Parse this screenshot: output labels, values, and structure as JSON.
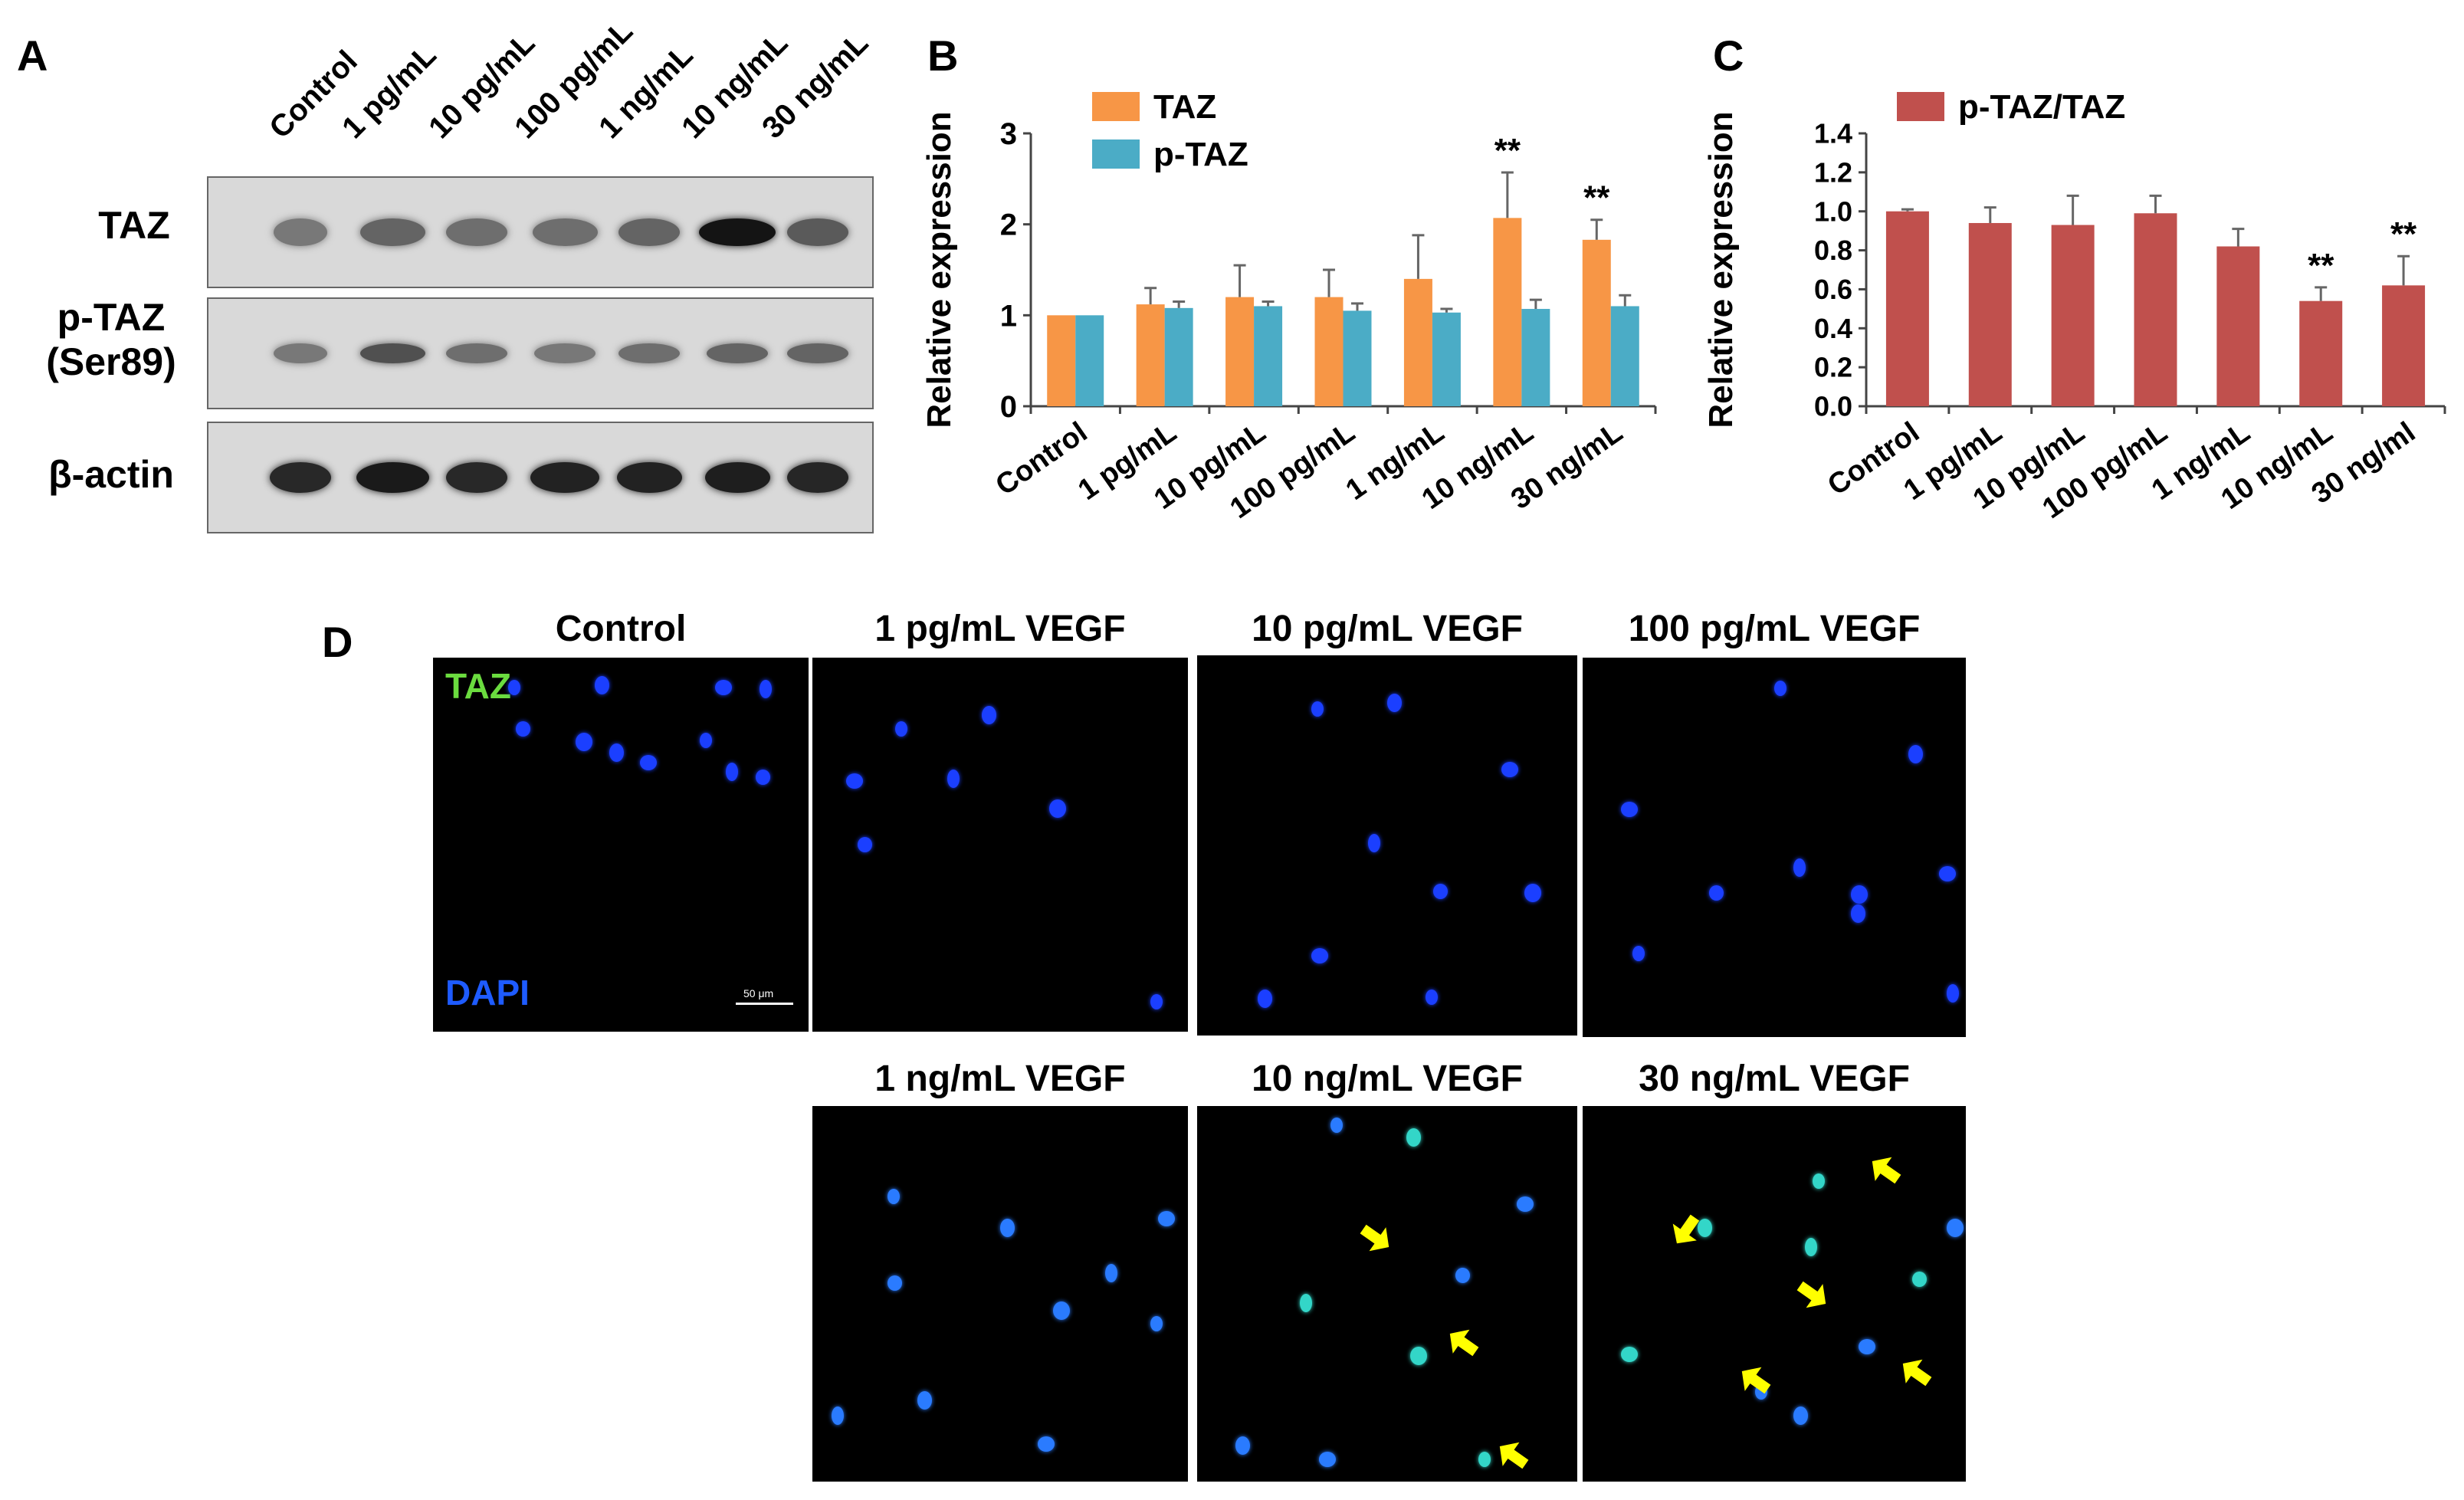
{
  "panel_labels": {
    "a": "A",
    "b": "B",
    "c": "C",
    "d": "D"
  },
  "blot": {
    "lanes": [
      "Control",
      "1 pg/mL",
      "10 pg/mL",
      "100 pg/mL",
      "1 ng/mL",
      "10 ng/mL",
      "30 ng/mL"
    ],
    "rows": [
      {
        "label_line1": "TAZ",
        "label_line2": ""
      },
      {
        "label_line1": "p-TAZ",
        "label_line2": "(Ser89)"
      },
      {
        "label_line1": "β-actin",
        "label_line2": ""
      }
    ]
  },
  "chart_data": [
    {
      "type": "bar",
      "panel": "B",
      "ylabel": "Relative expression",
      "ylim": [
        0,
        3
      ],
      "yticks": [
        "0",
        "1",
        "2",
        "3"
      ],
      "categories": [
        "Control",
        "1 pg/mL",
        "10 pg/mL",
        "100 pg/mL",
        "1 ng/mL",
        "10 ng/mL",
        "30 ng/mL"
      ],
      "legend_position": "top-left",
      "series": [
        {
          "name": "TAZ",
          "color": "#f79646",
          "values": [
            1.0,
            1.12,
            1.2,
            1.2,
            1.4,
            2.07,
            1.83
          ],
          "errors": [
            0.0,
            0.18,
            0.35,
            0.3,
            0.48,
            0.5,
            0.22
          ]
        },
        {
          "name": "p-TAZ",
          "color": "#4bacc6",
          "values": [
            1.0,
            1.08,
            1.1,
            1.05,
            1.03,
            1.07,
            1.1
          ],
          "errors": [
            0.0,
            0.07,
            0.05,
            0.08,
            0.04,
            0.1,
            0.12
          ]
        }
      ],
      "annotations": [
        {
          "category": "10 ng/mL",
          "text": "**"
        },
        {
          "category": "30 ng/mL",
          "text": "**"
        }
      ]
    },
    {
      "type": "bar",
      "panel": "C",
      "ylabel": "Relative expression",
      "ylim": [
        0,
        1.4
      ],
      "yticks": [
        "0.0",
        "0.2",
        "0.4",
        "0.6",
        "0.8",
        "1.0",
        "1.2",
        "1.4"
      ],
      "categories": [
        "Control",
        "1 pg/mL",
        "10 pg/mL",
        "100 pg/mL",
        "1 ng/mL",
        "10 ng/mL",
        "30 ng/ml"
      ],
      "legend_position": "top-left",
      "series": [
        {
          "name": "p-TAZ/TAZ",
          "color": "#c0504d",
          "values": [
            1.0,
            0.94,
            0.93,
            0.99,
            0.82,
            0.54,
            0.62
          ],
          "errors": [
            0.01,
            0.08,
            0.15,
            0.09,
            0.09,
            0.07,
            0.15
          ]
        }
      ],
      "annotations": [
        {
          "category": "10 ng/mL",
          "text": "**"
        },
        {
          "category": "30 ng/ml",
          "text": "**"
        }
      ]
    }
  ],
  "micrographs": {
    "titles": [
      "Control",
      "1 pg/mL VEGF",
      "10 pg/mL VEGF",
      "100 pg/mL VEGF",
      "1 ng/mL VEGF",
      "10 ng/mL VEGF",
      "30 ng/mL VEGF"
    ],
    "overlay_taz": "TAZ",
    "overlay_dapi": "DAPI",
    "scale_text": "50 μm",
    "taz_color": "#6bdc3f",
    "dapi_color": "#1e5bff",
    "arrow_color": "#ffff00"
  }
}
